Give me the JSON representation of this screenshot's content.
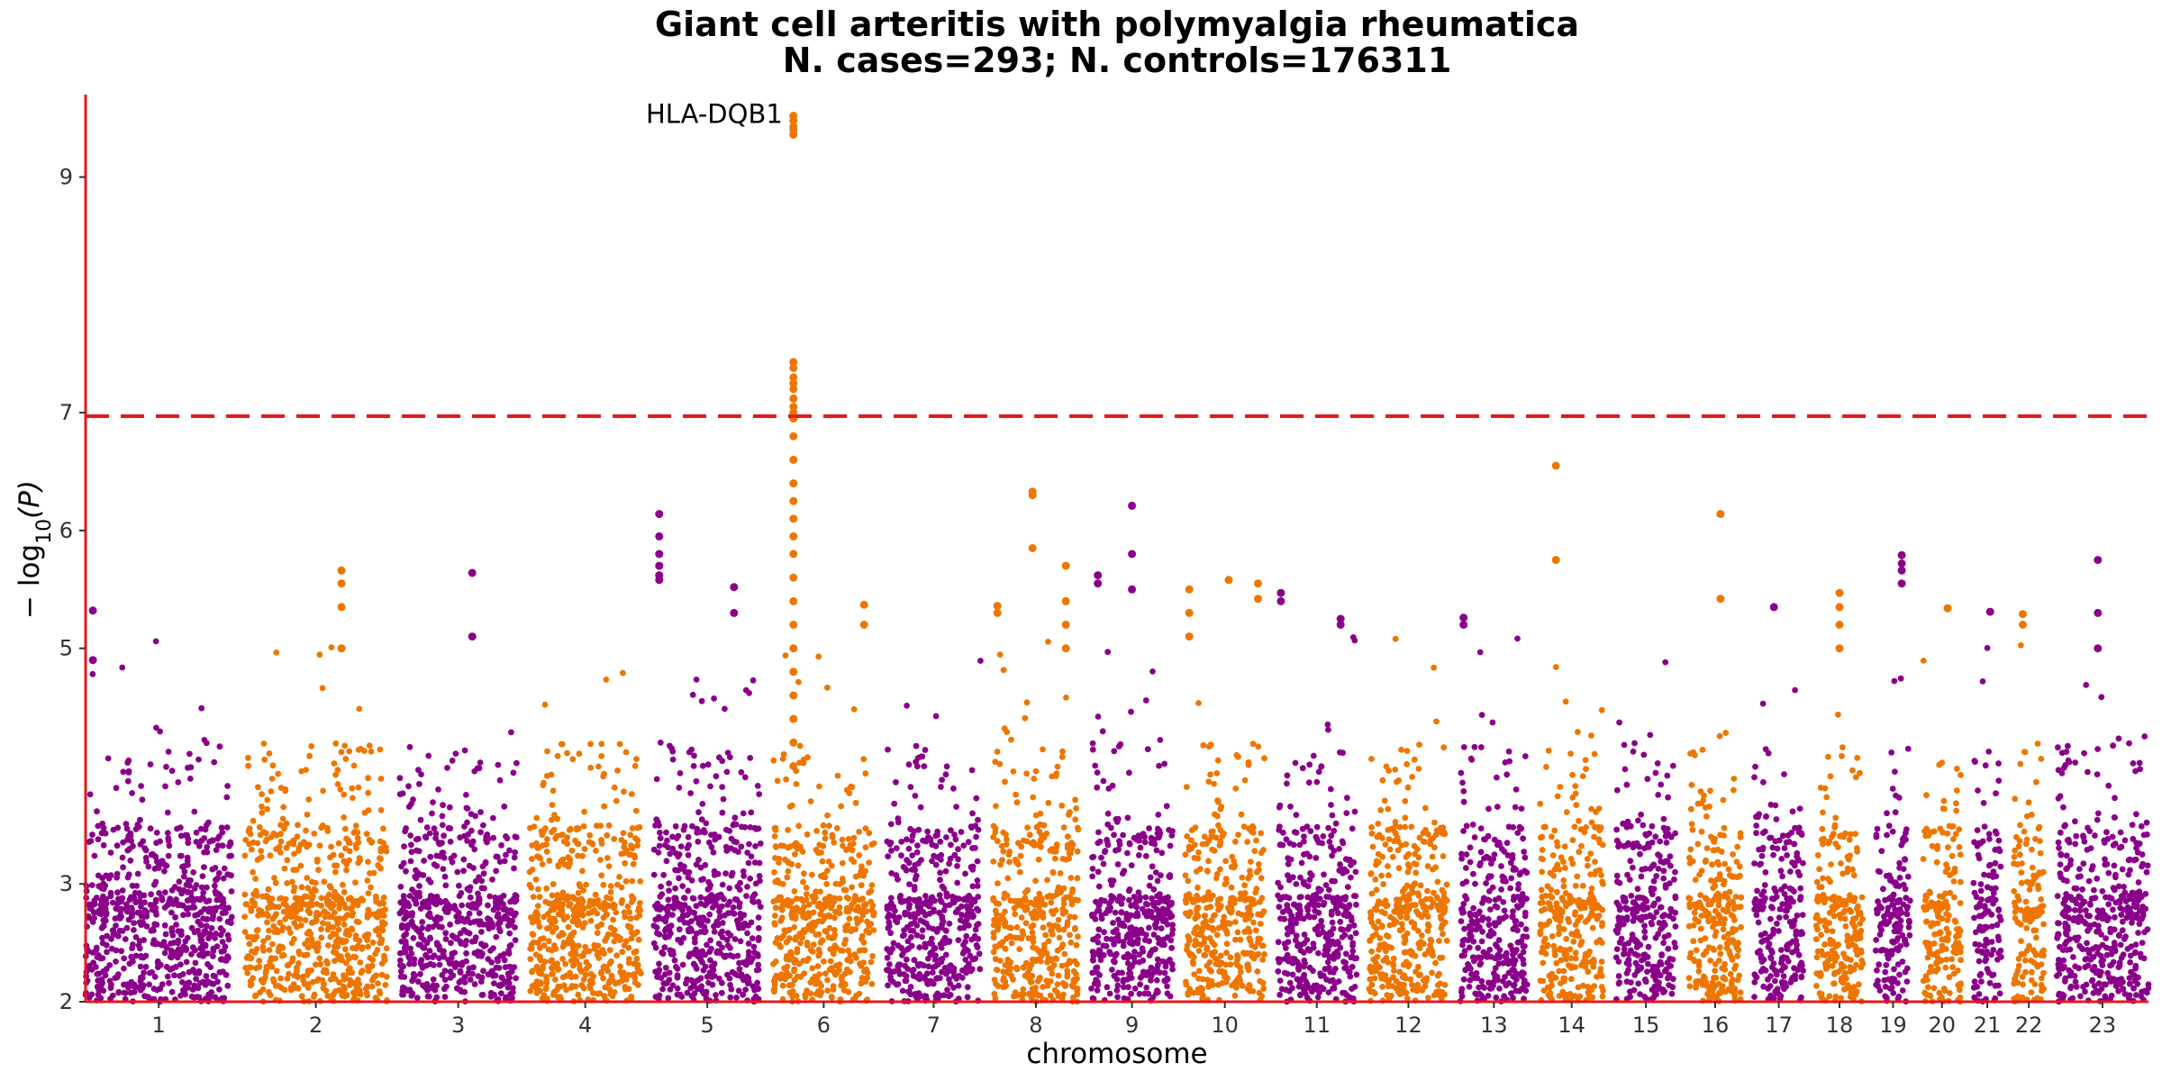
{
  "chart_data": {
    "type": "scatter",
    "subtype": "manhattan",
    "title": "Giant cell arteritis with polymyalgia rheumatica",
    "subtitle": "N. cases=293; N. controls=176311",
    "xlabel": "chromosome",
    "ylabel_main": "− log",
    "ylabel_sub": "10",
    "ylabel_tail": "(P)",
    "ylim": [
      2,
      9.7
    ],
    "yticks": [
      "2",
      "3",
      "5",
      "6",
      "7",
      "9"
    ],
    "significance_line": 6.97,
    "colors": {
      "odd": "#8B008B",
      "even": "#EE7600",
      "threshold": "#E31A1C",
      "axis": "#E31A1C"
    },
    "chromosomes": [
      "1",
      "2",
      "3",
      "4",
      "5",
      "6",
      "7",
      "8",
      "9",
      "10",
      "11",
      "12",
      "13",
      "14",
      "15",
      "16",
      "17",
      "18",
      "19",
      "20",
      "21",
      "22",
      "23"
    ],
    "chrom_lengths": [
      248,
      242,
      198,
      190,
      181,
      171,
      159,
      145,
      138,
      134,
      135,
      133,
      114,
      107,
      102,
      90,
      83,
      80,
      59,
      64,
      47,
      51,
      156
    ],
    "peaks": [
      {
        "chrom": 1,
        "pos": 0.05,
        "values": [
          5.32,
          4.9
        ]
      },
      {
        "chrom": 2,
        "pos": 0.68,
        "values": [
          5.66,
          5.55,
          5.35,
          5.0
        ]
      },
      {
        "chrom": 3,
        "pos": 0.62,
        "values": [
          5.64,
          5.1
        ]
      },
      {
        "chrom": 5,
        "pos": 0.05,
        "values": [
          6.14,
          5.95,
          5.8,
          5.7,
          5.62,
          5.58
        ]
      },
      {
        "chrom": 5,
        "pos": 0.75,
        "values": [
          5.52,
          5.3
        ]
      },
      {
        "chrom": 6,
        "pos": 0.2,
        "label": "HLA-DQB1",
        "values": [
          9.52,
          9.48,
          9.43,
          9.4,
          9.36,
          7.43,
          7.38,
          7.3,
          7.25,
          7.2,
          7.12,
          7.05,
          7.0,
          6.95,
          6.8,
          6.6,
          6.4,
          6.25,
          6.1,
          5.95,
          5.8,
          5.6,
          5.4,
          5.2,
          5.0,
          4.8,
          4.6,
          4.4,
          4.2,
          4.0
        ]
      },
      {
        "chrom": 6,
        "pos": 0.9,
        "values": [
          5.37,
          5.2
        ]
      },
      {
        "chrom": 8,
        "pos": 0.05,
        "values": [
          5.36,
          5.3
        ]
      },
      {
        "chrom": 8,
        "pos": 0.46,
        "values": [
          6.33,
          6.3,
          5.85
        ]
      },
      {
        "chrom": 8,
        "pos": 0.85,
        "values": [
          5.7,
          5.4,
          5.2,
          5.0
        ]
      },
      {
        "chrom": 9,
        "pos": 0.08,
        "values": [
          5.62,
          5.55
        ]
      },
      {
        "chrom": 9,
        "pos": 0.5,
        "values": [
          6.21,
          5.8,
          5.5
        ]
      },
      {
        "chrom": 10,
        "pos": 0.05,
        "values": [
          5.5,
          5.3,
          5.1
        ]
      },
      {
        "chrom": 10,
        "pos": 0.55,
        "values": [
          5.58
        ]
      },
      {
        "chrom": 10,
        "pos": 0.92,
        "values": [
          5.55,
          5.42
        ]
      },
      {
        "chrom": 11,
        "pos": 0.05,
        "values": [
          5.47,
          5.4
        ]
      },
      {
        "chrom": 11,
        "pos": 0.8,
        "values": [
          5.25,
          5.2
        ]
      },
      {
        "chrom": 13,
        "pos": 0.05,
        "values": [
          5.26,
          5.2
        ]
      },
      {
        "chrom": 14,
        "pos": 0.25,
        "values": [
          6.55,
          5.75
        ]
      },
      {
        "chrom": 16,
        "pos": 0.6,
        "values": [
          6.14,
          5.42
        ]
      },
      {
        "chrom": 17,
        "pos": 0.4,
        "values": [
          5.35
        ]
      },
      {
        "chrom": 18,
        "pos": 0.5,
        "values": [
          5.47,
          5.35,
          5.2,
          5.0
        ]
      },
      {
        "chrom": 19,
        "pos": 0.75,
        "values": [
          5.79,
          5.72,
          5.66,
          5.55
        ]
      },
      {
        "chrom": 20,
        "pos": 0.65,
        "values": [
          5.34
        ]
      },
      {
        "chrom": 21,
        "pos": 0.6,
        "values": [
          5.31
        ]
      },
      {
        "chrom": 22,
        "pos": 0.3,
        "values": [
          5.29,
          5.2
        ]
      },
      {
        "chrom": 23,
        "pos": 0.45,
        "values": [
          5.75,
          5.3,
          5.0
        ]
      }
    ]
  }
}
